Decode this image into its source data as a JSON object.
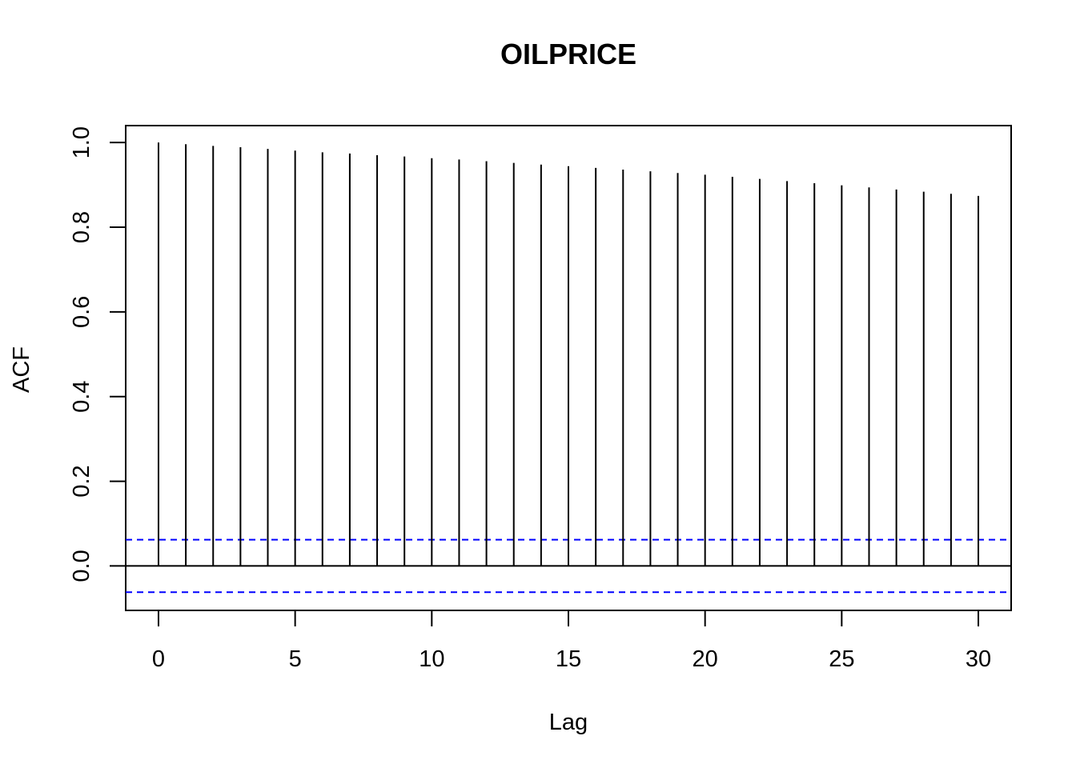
{
  "chart_data": {
    "type": "bar",
    "title": "OILPRICE",
    "xlabel": "Lag",
    "ylabel": "ACF",
    "xlim": [
      -1.2,
      31.2
    ],
    "ylim": [
      -0.105,
      1.04
    ],
    "x_ticks": [
      0,
      5,
      10,
      15,
      20,
      25,
      30
    ],
    "y_ticks": [
      0.0,
      0.2,
      0.4,
      0.6,
      0.8,
      1.0
    ],
    "y_tick_labels": [
      "0.0",
      "0.2",
      "0.4",
      "0.6",
      "0.8",
      "1.0"
    ],
    "lags": [
      0,
      1,
      2,
      3,
      4,
      5,
      6,
      7,
      8,
      9,
      10,
      11,
      12,
      13,
      14,
      15,
      16,
      17,
      18,
      19,
      20,
      21,
      22,
      23,
      24,
      25,
      26,
      27,
      28,
      29,
      30
    ],
    "values": [
      1.0,
      0.996,
      0.992,
      0.989,
      0.985,
      0.981,
      0.977,
      0.974,
      0.97,
      0.967,
      0.963,
      0.96,
      0.956,
      0.952,
      0.948,
      0.944,
      0.94,
      0.936,
      0.932,
      0.928,
      0.924,
      0.919,
      0.914,
      0.909,
      0.904,
      0.899,
      0.894,
      0.889,
      0.884,
      0.879,
      0.874
    ],
    "confidence_bound": 0.062,
    "zero_line": true,
    "colors": {
      "bars": "#000000",
      "confidence_lines": "#0000FF",
      "frame": "#000000"
    }
  }
}
